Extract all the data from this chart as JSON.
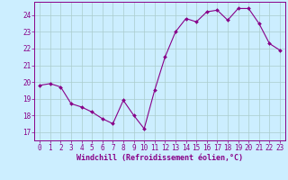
{
  "x": [
    0,
    1,
    2,
    3,
    4,
    5,
    6,
    7,
    8,
    9,
    10,
    11,
    12,
    13,
    14,
    15,
    16,
    17,
    18,
    19,
    20,
    21,
    22,
    23
  ],
  "y": [
    19.8,
    19.9,
    19.7,
    18.7,
    18.5,
    18.2,
    17.8,
    17.5,
    18.9,
    18.0,
    17.2,
    19.5,
    21.5,
    23.0,
    23.8,
    23.6,
    24.2,
    24.3,
    23.7,
    24.4,
    24.4,
    23.5,
    22.3,
    21.9
  ],
  "line_color": "#880088",
  "marker": "D",
  "marker_size": 2.0,
  "bg_color": "#cceeff",
  "grid_color": "#aacccc",
  "tick_color": "#880088",
  "label_color": "#880088",
  "xlabel": "Windchill (Refroidissement éolien,°C)",
  "ylim": [
    16.5,
    24.8
  ],
  "xlim": [
    -0.5,
    23.5
  ],
  "yticks": [
    17,
    18,
    19,
    20,
    21,
    22,
    23,
    24
  ],
  "xticks": [
    0,
    1,
    2,
    3,
    4,
    5,
    6,
    7,
    8,
    9,
    10,
    11,
    12,
    13,
    14,
    15,
    16,
    17,
    18,
    19,
    20,
    21,
    22,
    23
  ],
  "axis_fontsize": 5.5,
  "tick_fontsize": 5.5,
  "xlabel_fontsize": 6.0
}
